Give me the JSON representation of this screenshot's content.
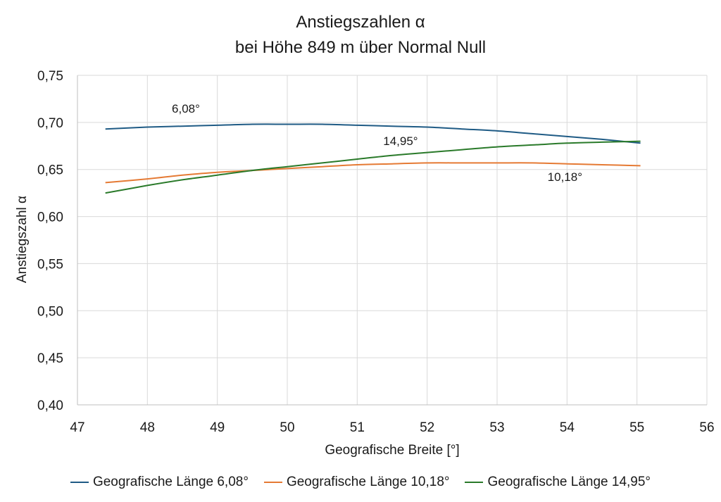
{
  "chart_data": {
    "type": "line",
    "title_line1": "Anstiegszahlen α",
    "title_line2": "bei Höhe 849 m über Normal Null",
    "xlabel": "Geografische Breite [°]",
    "ylabel": "Anstiegszahl α",
    "xlim": [
      47,
      56
    ],
    "ylim": [
      0.4,
      0.75
    ],
    "x_ticks": [
      "47",
      "48",
      "49",
      "50",
      "51",
      "52",
      "53",
      "54",
      "55",
      "56"
    ],
    "y_ticks": [
      "0,40",
      "0,45",
      "0,50",
      "0,55",
      "0,60",
      "0,65",
      "0,70",
      "0,75"
    ],
    "grid": true,
    "series": [
      {
        "name": "Geografische Länge 6,08°",
        "color": "#1f5b85",
        "x": [
          47.4,
          48.0,
          48.5,
          49.0,
          49.5,
          50.0,
          50.5,
          51.0,
          51.5,
          52.0,
          52.5,
          53.0,
          53.5,
          54.0,
          54.5,
          55.05
        ],
        "values": [
          0.693,
          0.695,
          0.696,
          0.697,
          0.698,
          0.698,
          0.698,
          0.697,
          0.696,
          0.695,
          0.693,
          0.691,
          0.688,
          0.685,
          0.682,
          0.678
        ]
      },
      {
        "name": "Geografische Länge 10,18°",
        "color": "#e57a34",
        "x": [
          47.4,
          48.0,
          48.5,
          49.0,
          49.5,
          50.0,
          50.5,
          51.0,
          51.5,
          52.0,
          52.5,
          53.0,
          53.5,
          54.0,
          54.5,
          55.05
        ],
        "values": [
          0.636,
          0.64,
          0.644,
          0.647,
          0.649,
          0.651,
          0.653,
          0.655,
          0.656,
          0.657,
          0.657,
          0.657,
          0.657,
          0.656,
          0.655,
          0.654
        ]
      },
      {
        "name": "Geografische Länge 14,95°",
        "color": "#2a7a2a",
        "x": [
          47.4,
          48.0,
          48.5,
          49.0,
          49.5,
          50.0,
          50.5,
          51.0,
          51.5,
          52.0,
          52.5,
          53.0,
          53.5,
          54.0,
          54.5,
          55.05
        ],
        "values": [
          0.625,
          0.633,
          0.639,
          0.644,
          0.649,
          0.653,
          0.657,
          0.661,
          0.665,
          0.668,
          0.671,
          0.674,
          0.676,
          0.678,
          0.679,
          0.68
        ]
      }
    ],
    "annotations": [
      {
        "text": "6,08°",
        "x": 48.55,
        "y": 0.7105
      },
      {
        "text": "14,95°",
        "x": 51.62,
        "y": 0.676
      },
      {
        "text": "10,18°",
        "x": 53.97,
        "y": 0.638
      }
    ]
  }
}
